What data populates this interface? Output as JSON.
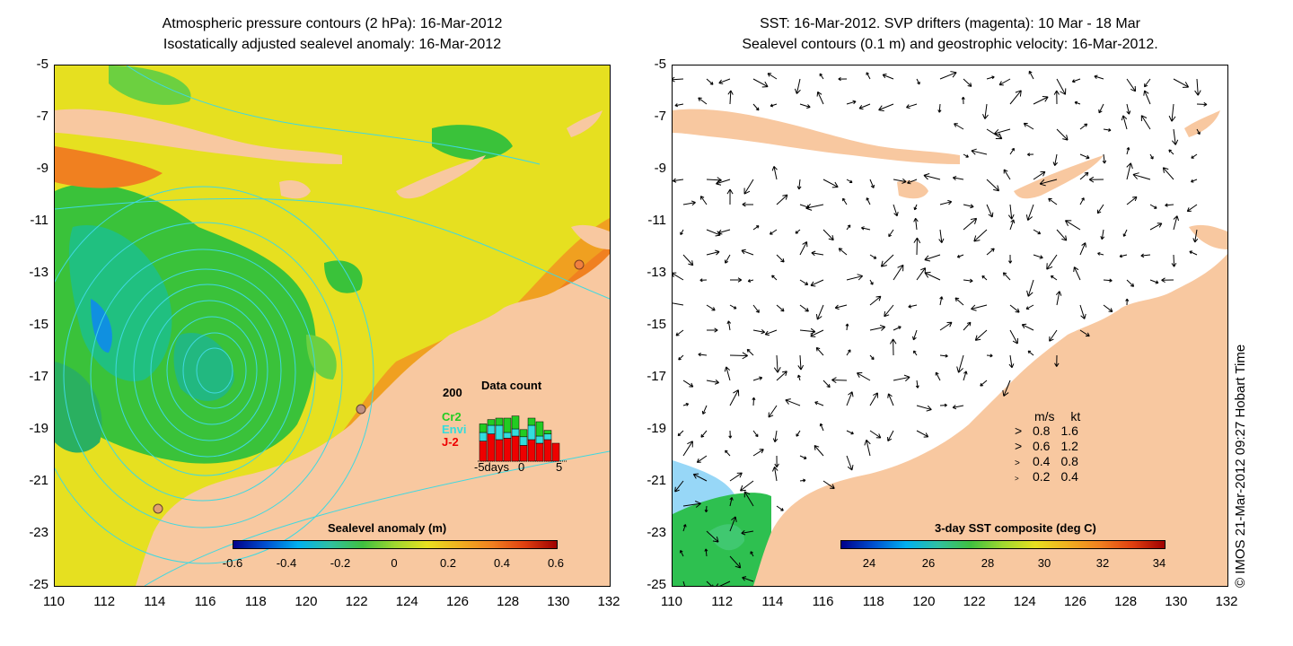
{
  "left_panel": {
    "title_line1": "Atmospheric pressure contours (2 hPa): 16-Mar-2012",
    "title_line2": "Isostatically adjusted sealevel anomaly: 16-Mar-2012",
    "colorbar": {
      "label": "Sealevel anomaly (m)",
      "ticks": [
        "-0.6",
        "-0.4",
        "-0.2",
        "0",
        "0.2",
        "0.4",
        "0.6"
      ]
    },
    "data_count": {
      "title": "Data count",
      "ymax_label": "200",
      "xtick_left": "-5days",
      "xtick_mid": "0",
      "xtick_right": "5",
      "legend": [
        {
          "label": "Cr2",
          "color": "#22cc22"
        },
        {
          "label": "Envi",
          "color": "#33dddd"
        },
        {
          "label": "J-2",
          "color": "#ee0000"
        }
      ],
      "bars": [
        {
          "j2": 0.28,
          "envi": 0.12,
          "cr2": 0.12
        },
        {
          "j2": 0.38,
          "envi": 0.12,
          "cr2": 0.08
        },
        {
          "j2": 0.3,
          "envi": 0.2,
          "cr2": 0.1
        },
        {
          "j2": 0.32,
          "envi": 0.08,
          "cr2": 0.2
        },
        {
          "j2": 0.35,
          "envi": 0.1,
          "cr2": 0.18
        },
        {
          "j2": 0.22,
          "envi": 0.12,
          "cr2": 0.1
        },
        {
          "j2": 0.3,
          "envi": 0.2,
          "cr2": 0.1
        },
        {
          "j2": 0.25,
          "envi": 0.1,
          "cr2": 0.2
        },
        {
          "j2": 0.3,
          "envi": 0.08,
          "cr2": 0.05
        },
        {
          "j2": 0.25,
          "envi": 0.0,
          "cr2": 0.0
        }
      ]
    }
  },
  "right_panel": {
    "title_line1": "SST: 16-Mar-2012. SVP drifters (magenta): 10 Mar - 18 Mar",
    "title_line2": "Sealevel contours (0.1 m) and geostrophic velocity: 16-Mar-2012.",
    "colorbar": {
      "label": "3-day SST composite (deg C)",
      "ticks": [
        "24",
        "26",
        "28",
        "30",
        "32",
        "34"
      ]
    },
    "velocity_key": {
      "header_ms": "m/s",
      "header_kt": "kt",
      "rows": [
        {
          "ms": "0.8",
          "kt": "1.6"
        },
        {
          "ms": "0.6",
          "kt": "1.2"
        },
        {
          "ms": "0.4",
          "kt": "0.8"
        },
        {
          "ms": "0.2",
          "kt": "0.4"
        }
      ]
    }
  },
  "axes": {
    "y_ticks": [
      "-5",
      "-7",
      "-9",
      "-11",
      "-13",
      "-15",
      "-17",
      "-19",
      "-21",
      "-23",
      "-25"
    ],
    "x_ticks": [
      "110",
      "112",
      "114",
      "116",
      "118",
      "120",
      "122",
      "124",
      "126",
      "128",
      "130",
      "132"
    ]
  },
  "credit": "© IMOS 21-Mar-2012 09:27 Hobart Time",
  "colors": {
    "land": "#f8c8a0",
    "ocean_yellow": "#e8e020",
    "ocean_green": "#30c030",
    "ocean_orange": "#f0a020",
    "contour_cyan": "#40d8e0"
  }
}
